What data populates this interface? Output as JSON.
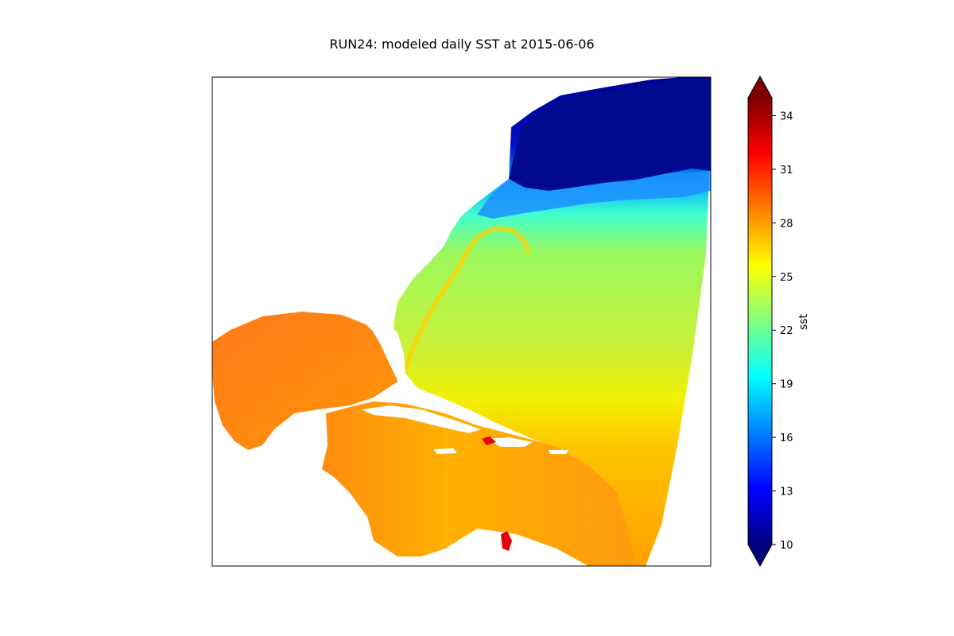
{
  "chart_data": {
    "type": "heatmap",
    "title": "RUN24: modeled daily SST at 2015-06-06",
    "xlabel": "",
    "ylabel": "",
    "grid": false,
    "colorbar": {
      "label": "sst",
      "range": [
        10,
        35
      ],
      "extend": "both",
      "ticks": [
        10,
        13,
        16,
        19,
        22,
        25,
        28,
        31,
        34
      ],
      "colormap": [
        "#00007f",
        "#0000ff",
        "#007fff",
        "#00ffff",
        "#7fff7f",
        "#ffff00",
        "#ff7f00",
        "#ff0000",
        "#7f0000"
      ]
    },
    "colors": {
      "land": "#ffffff",
      "frame": "#000000"
    }
  }
}
